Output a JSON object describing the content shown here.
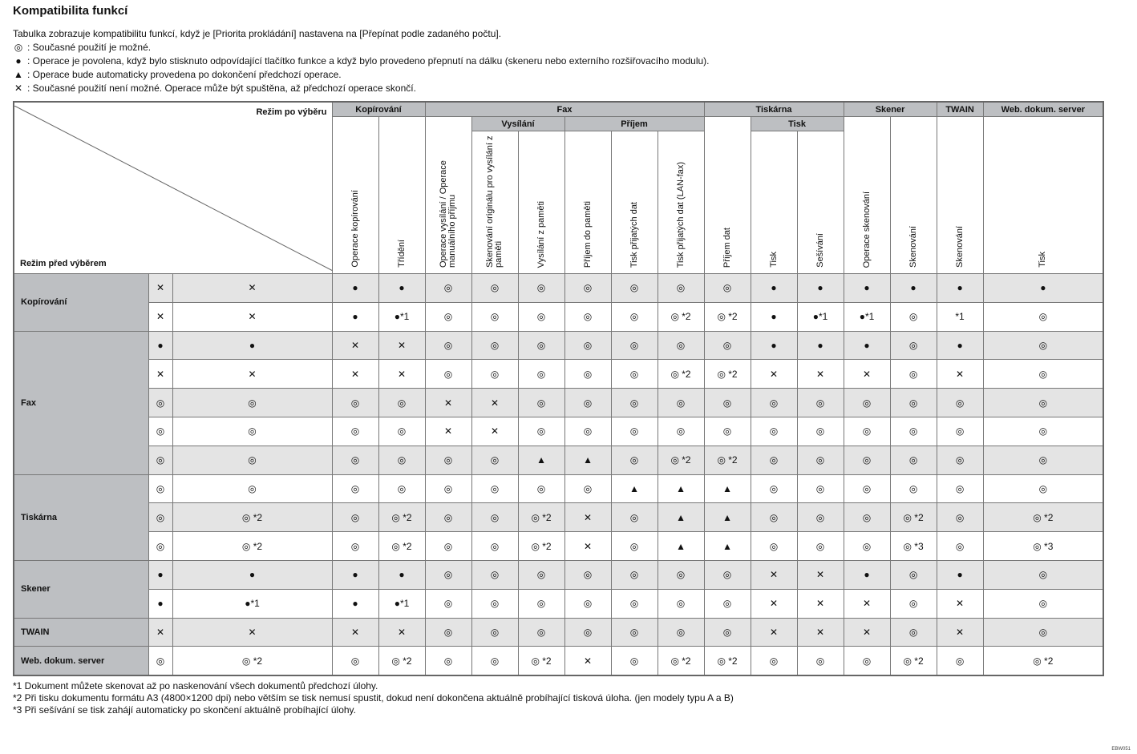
{
  "title": "Kompatibilita funkcí",
  "intro": "Tabulka zobrazuje kompatibilitu funkcí, když je [Priorita prokládání] nastavena na [Přepínat podle zadaného počtu].",
  "legend": [
    {
      "symbol": "◎",
      "text": ": Současné použití je možné."
    },
    {
      "symbol": "●",
      "text": ": Operace je povolena, když bylo stisknuto odpovídající tlačítko funkce a když bylo provedeno přepnutí na dálku (skeneru nebo externího rozšiřovacího modulu)."
    },
    {
      "symbol": "▲",
      "text": ": Operace bude automaticky provedena po dokončení předchozí operace."
    },
    {
      "symbol": "✕",
      "text": ": Současné použití není možné. Operace může být spuštěna, až předchozí operace skončí."
    }
  ],
  "table": {
    "corner": {
      "top": "Režim po výběru",
      "bottom": "Režim před výběrem"
    },
    "groups": [
      {
        "label": "Kopírování",
        "columns": [
          "Operace kopírování",
          "Třídění"
        ]
      },
      {
        "label": "Fax",
        "columns": [
          "Operace vysílání / Operace manuálního příjmu",
          {
            "label": "Vysílání",
            "columns": [
              "Skenování originálu pro vysílání z paměti",
              "Vysílání z paměti"
            ]
          },
          {
            "label": "Příjem",
            "columns": [
              "Příjem do paměti",
              "Tisk přijatých dat",
              "Tisk přijatých dat (LAN-fax)"
            ]
          }
        ]
      },
      {
        "label": "Tiskárna",
        "columns": [
          "Příjem dat",
          {
            "label": "Tisk",
            "columns": [
              "Tisk",
              "Sešívání"
            ]
          }
        ]
      },
      {
        "label": "Skener",
        "columns": [
          "Operace skenování",
          "Skenování"
        ]
      },
      {
        "label": "TWAIN",
        "columns": [
          "Skenování"
        ]
      },
      {
        "label": "Web. dokum. server",
        "columns": [
          "Tisk"
        ]
      }
    ],
    "row_groups": [
      {
        "label": "Kopírování",
        "rows": [
          [
            "✕",
            "✕",
            "●",
            "●",
            "◎",
            "◎",
            "◎",
            "◎",
            "◎",
            "◎",
            "◎",
            "●",
            "●",
            "●",
            "●",
            "●",
            "●"
          ],
          [
            "✕",
            "✕",
            "●",
            "●*1",
            "◎",
            "◎",
            "◎",
            "◎",
            "◎",
            "◎ *2",
            "◎ *2",
            "●",
            "●*1",
            "●*1",
            "◎",
            "*1",
            "◎"
          ]
        ]
      },
      {
        "label": "Fax",
        "rows": [
          [
            "●",
            "●",
            "✕",
            "✕",
            "◎",
            "◎",
            "◎",
            "◎",
            "◎",
            "◎",
            "◎",
            "●",
            "●",
            "●",
            "◎",
            "●",
            "◎"
          ],
          [
            "✕",
            "✕",
            "✕",
            "✕",
            "◎",
            "◎",
            "◎",
            "◎",
            "◎",
            "◎ *2",
            "◎ *2",
            "✕",
            "✕",
            "✕",
            "◎",
            "✕",
            "◎"
          ],
          [
            "◎",
            "◎",
            "◎",
            "◎",
            "✕",
            "✕",
            "◎",
            "◎",
            "◎",
            "◎",
            "◎",
            "◎",
            "◎",
            "◎",
            "◎",
            "◎",
            "◎"
          ],
          [
            "◎",
            "◎",
            "◎",
            "◎",
            "✕",
            "✕",
            "◎",
            "◎",
            "◎",
            "◎",
            "◎",
            "◎",
            "◎",
            "◎",
            "◎",
            "◎",
            "◎"
          ],
          [
            "◎",
            "◎",
            "◎",
            "◎",
            "◎",
            "◎",
            "▲",
            "▲",
            "◎",
            "◎ *2",
            "◎ *2",
            "◎",
            "◎",
            "◎",
            "◎",
            "◎",
            "◎"
          ]
        ]
      },
      {
        "label": "Tiskárna",
        "rows": [
          [
            "◎",
            "◎",
            "◎",
            "◎",
            "◎",
            "◎",
            "◎",
            "◎",
            "▲",
            "▲",
            "▲",
            "◎",
            "◎",
            "◎",
            "◎",
            "◎",
            "◎"
          ],
          [
            "◎",
            "◎ *2",
            "◎",
            "◎ *2",
            "◎",
            "◎",
            "◎ *2",
            "✕",
            "◎",
            "▲",
            "▲",
            "◎",
            "◎",
            "◎",
            "◎ *2",
            "◎",
            "◎ *2"
          ],
          [
            "◎",
            "◎ *2",
            "◎",
            "◎ *2",
            "◎",
            "◎",
            "◎ *2",
            "✕",
            "◎",
            "▲",
            "▲",
            "◎",
            "◎",
            "◎",
            "◎ *3",
            "◎",
            "◎ *3"
          ]
        ]
      },
      {
        "label": "Skener",
        "rows": [
          [
            "●",
            "●",
            "●",
            "●",
            "◎",
            "◎",
            "◎",
            "◎",
            "◎",
            "◎",
            "◎",
            "✕",
            "✕",
            "●",
            "◎",
            "●",
            "◎"
          ],
          [
            "●",
            "●*1",
            "●",
            "●*1",
            "◎",
            "◎",
            "◎",
            "◎",
            "◎",
            "◎",
            "◎",
            "✕",
            "✕",
            "✕",
            "◎",
            "✕",
            "◎"
          ]
        ]
      },
      {
        "label": "TWAIN",
        "rows": [
          [
            "✕",
            "✕",
            "✕",
            "✕",
            "◎",
            "◎",
            "◎",
            "◎",
            "◎",
            "◎",
            "◎",
            "✕",
            "✕",
            "✕",
            "◎",
            "✕",
            "◎"
          ]
        ]
      },
      {
        "label": "Web. dokum. server",
        "rows": [
          [
            "◎",
            "◎ *2",
            "◎",
            "◎ *2",
            "◎",
            "◎",
            "◎ *2",
            "✕",
            "◎",
            "◎ *2",
            "◎ *2",
            "◎",
            "◎",
            "◎",
            "◎ *2",
            "◎",
            "◎ *2"
          ]
        ]
      }
    ]
  },
  "footnotes": [
    "*1 Dokument můžete skenovat až po naskenování všech dokumentů předchozí úlohy.",
    "*2 Při tisku dokumentu formátu A3 (4800×1200 dpi) nebo větším se tisk nemusí spustit, dokud není dokončena aktuálně probíhající tisková úloha. (jen modely typu A a B)",
    "*3 Při sešívání se tisk zahájí automaticky po skončení aktuálně probíhající úlohy."
  ],
  "code": "EBW051"
}
